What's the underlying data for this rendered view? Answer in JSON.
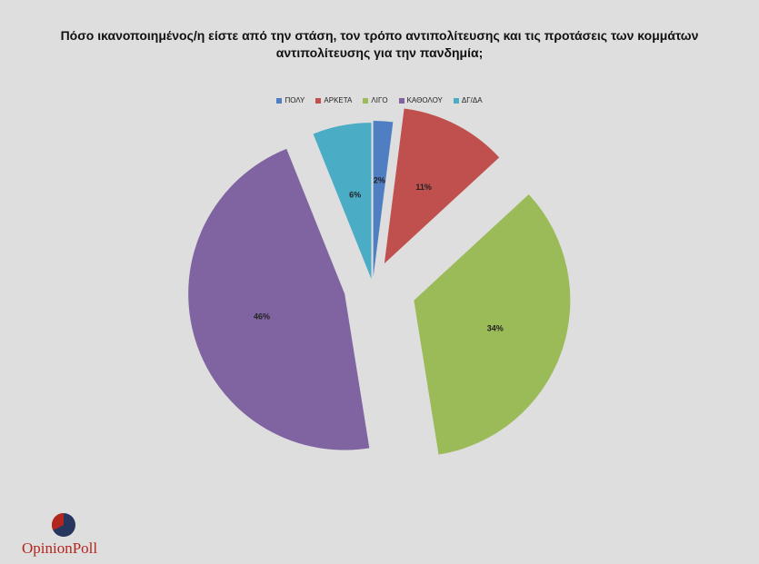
{
  "chart_data": {
    "type": "pie",
    "title_lines": [
      "Πόσο ικανοποιημένος/η είστε από την στάση, τον τρόπο αντιπολίτευσης και τις προτάσεις των κομμάτων",
      "αντιπολίτευσης για την πανδημία;"
    ],
    "categories": [
      "ΠΟΛΥ",
      "ΑΡΚΕΤΑ",
      "ΛΙΓΟ",
      "ΚΑΘΟΛΟΥ",
      "ΔΓ/ΔΑ"
    ],
    "values": [
      2,
      11,
      34,
      46,
      6
    ],
    "labels": [
      "2%",
      "11%",
      "34%",
      "46%",
      "6%"
    ],
    "colors": [
      "#4f7fc2",
      "#c0504d",
      "#9bbb59",
      "#8064a2",
      "#4bacc6"
    ],
    "legend_position": "top",
    "exploded": true
  },
  "logo": {
    "text": "OpinionPoll",
    "icon": "opinionpoll-logo-mark"
  }
}
